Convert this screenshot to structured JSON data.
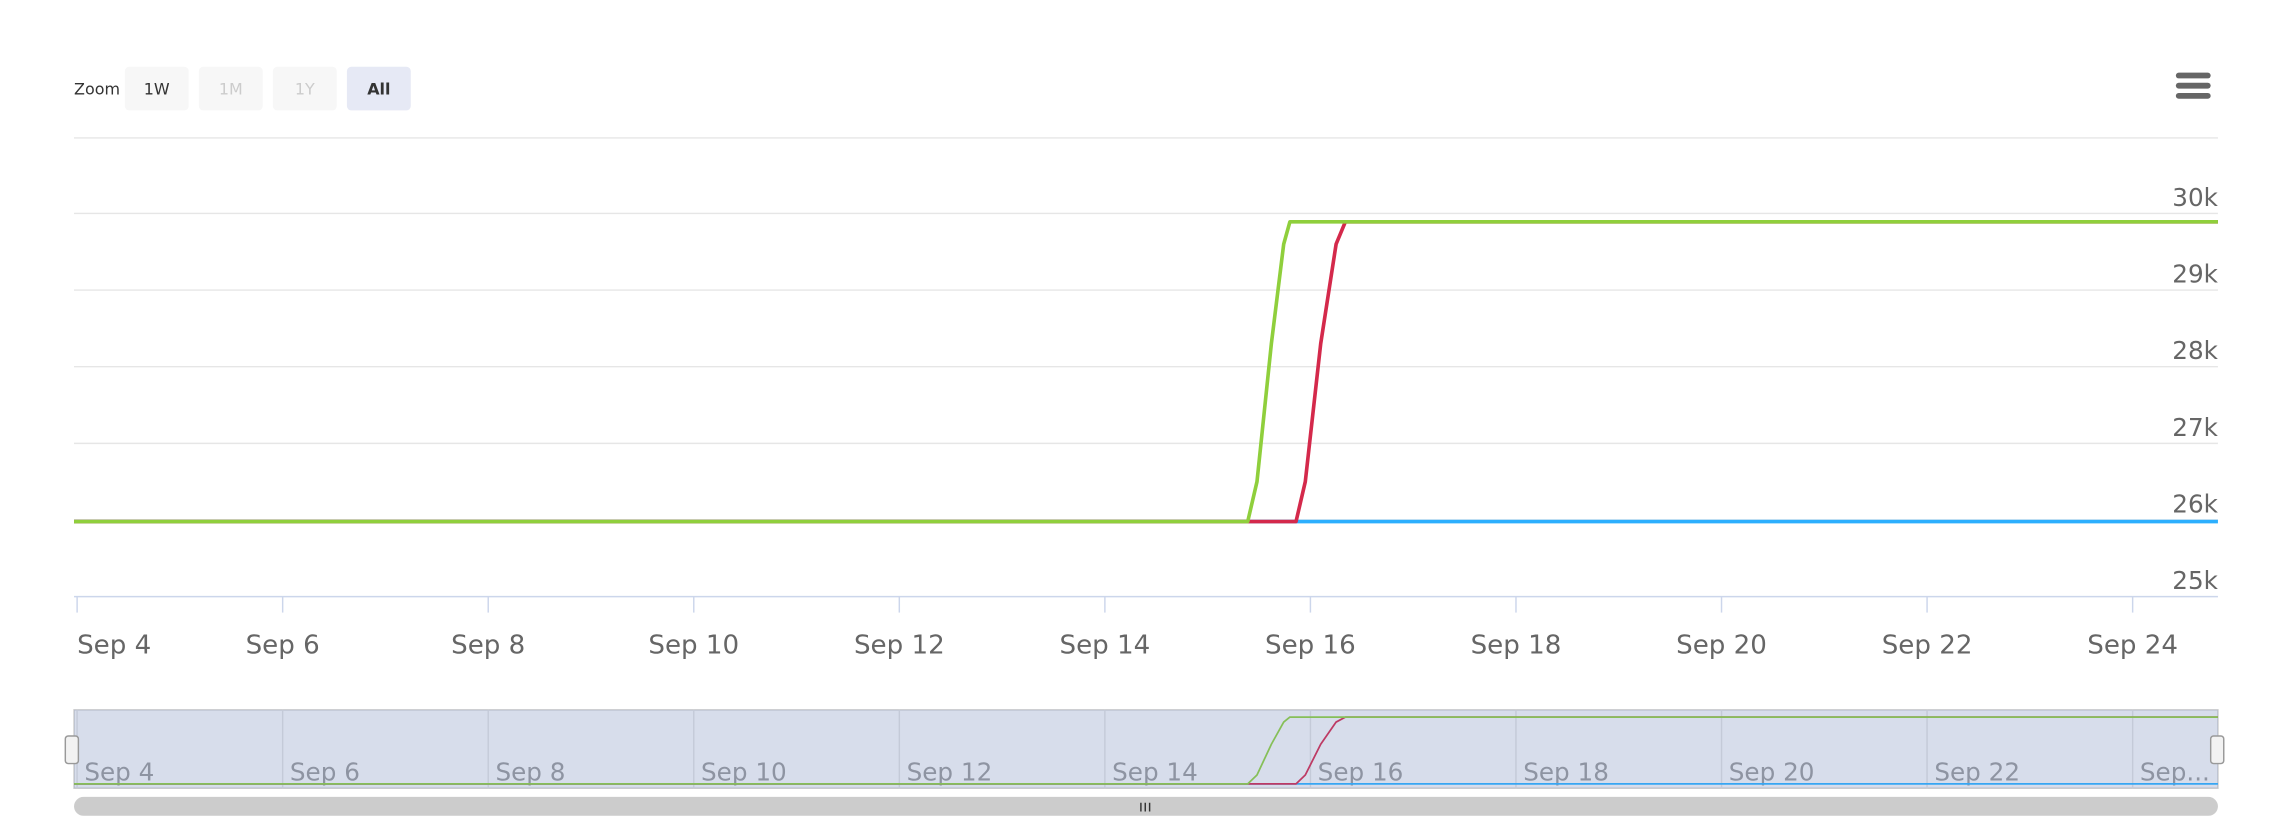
{
  "chart_data": {
    "type": "line",
    "range_selector": {
      "label": "Zoom",
      "buttons": [
        "1W",
        "1M",
        "1Y",
        "All"
      ],
      "disabled": [
        false,
        true,
        true,
        false
      ],
      "selected": 3
    },
    "xlim": [
      3.97,
      24.83
    ],
    "xticks": [
      {
        "value": 4,
        "label": "Sep 4"
      },
      {
        "value": 6,
        "label": "Sep 6"
      },
      {
        "value": 8,
        "label": "Sep 8"
      },
      {
        "value": 10,
        "label": "Sep 10"
      },
      {
        "value": 12,
        "label": "Sep 12"
      },
      {
        "value": 14,
        "label": "Sep 14"
      },
      {
        "value": 16,
        "label": "Sep 16"
      },
      {
        "value": 18,
        "label": "Sep 18"
      },
      {
        "value": 20,
        "label": "Sep 20"
      },
      {
        "value": 22,
        "label": "Sep 22"
      },
      {
        "value": 24,
        "label": "Sep 24"
      }
    ],
    "navigator_last_label": "Sep...",
    "ylim": [
      25000,
      30985
    ],
    "yticks": [
      {
        "value": 25000,
        "label": "25k"
      },
      {
        "value": 26000,
        "label": "26k"
      },
      {
        "value": 27000,
        "label": "27k"
      },
      {
        "value": 28000,
        "label": "28k"
      },
      {
        "value": 29000,
        "label": "29k"
      },
      {
        "value": 30000,
        "label": "30k"
      }
    ],
    "grid": true,
    "series": [
      {
        "color": "#2caffe",
        "x": [
          3.97,
          24.83
        ],
        "values": [
          25980,
          25980
        ]
      },
      {
        "color": "#d4294b",
        "x": [
          3.97,
          15.86,
          15.95,
          16.1,
          16.25,
          16.34,
          24.83
        ],
        "values": [
          25980,
          25980,
          26500,
          28300,
          29600,
          29890,
          29890
        ]
      },
      {
        "color": "#8fcf3c",
        "x": [
          3.97,
          15.39,
          15.48,
          15.62,
          15.74,
          15.8,
          24.83
        ],
        "values": [
          25980,
          25980,
          26500,
          28300,
          29600,
          29890,
          29890
        ]
      }
    ]
  }
}
